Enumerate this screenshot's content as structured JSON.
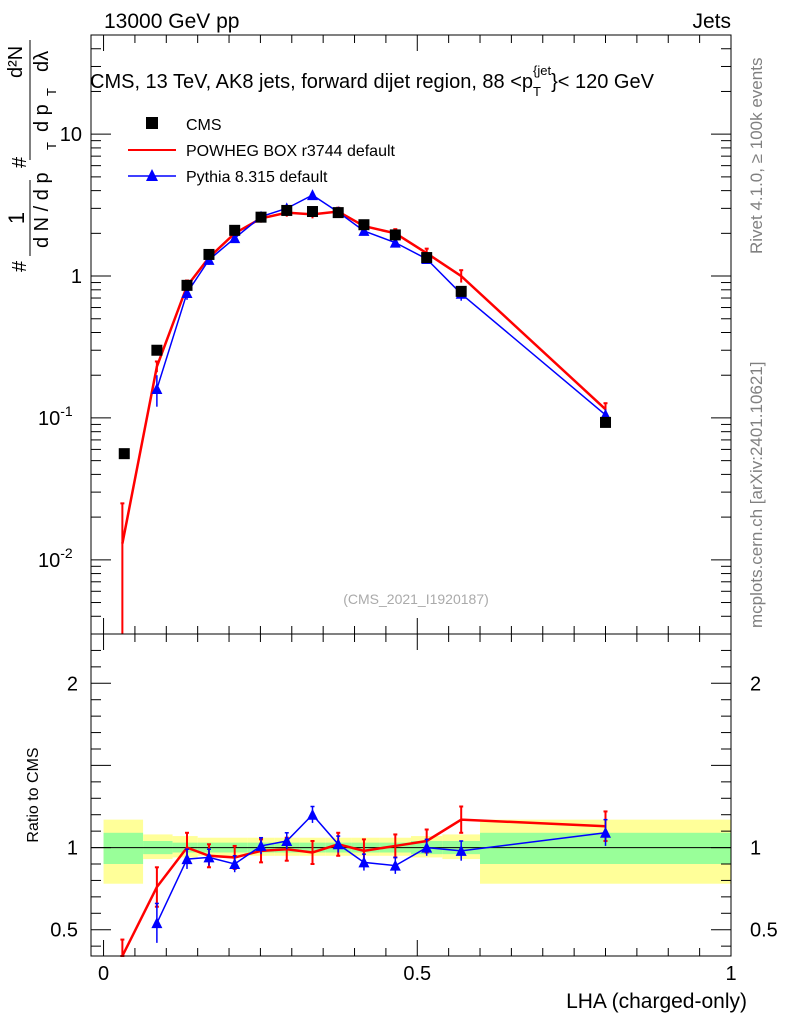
{
  "header": {
    "energy_label": "13000 GeV pp",
    "category_label": "Jets"
  },
  "side_labels": {
    "rivet": "Rivet 4.1.0, ≥ 100k events",
    "source": "mcplots.cern.ch [arXiv:2401.10621]"
  },
  "chart_data": [
    {
      "panel": "main",
      "type": "line",
      "title": "CMS, 13 TeV, AK8 jets, forward dijet region, 88 <p_T^{jet}< 120 GeV",
      "title_parts": {
        "prefix": "CMS, 13 TeV, AK8 jets, forward dijet region, 88 <p",
        "sub": "T",
        "sup": "{jet",
        "suffix": "}< 120 GeV"
      },
      "ylabel": "1/(dN/dp_T) d²N/(dp_T dλ)",
      "ylabel_parts": {
        "one": "1",
        "den": "d N / d p",
        "num": "d²N",
        "den2": "d p",
        "dl": "dλ",
        "T": "T",
        "hash": "#"
      },
      "yscale": "log",
      "ylim": [
        0.003,
        50
      ],
      "y_ticks": [
        {
          "value": 0.01,
          "label": "10",
          "exp": "-2"
        },
        {
          "value": 0.1,
          "label": "10",
          "exp": "-1"
        },
        {
          "value": 1,
          "label": "1",
          "exp": ""
        },
        {
          "value": 10,
          "label": "10",
          "exp": ""
        }
      ],
      "xlim": [
        -0.02,
        1.0
      ],
      "watermark": "(CMS_2021_I1920187)",
      "legend_position": "top-left",
      "series": [
        {
          "name": "CMS",
          "marker": "square",
          "color": "#000000",
          "x": [
            0.033,
            0.085,
            0.133,
            0.168,
            0.209,
            0.251,
            0.292,
            0.333,
            0.374,
            0.415,
            0.465,
            0.515,
            0.57,
            0.8
          ],
          "y": [
            0.056,
            0.3,
            0.86,
            1.42,
            2.1,
            2.6,
            2.9,
            2.85,
            2.8,
            2.3,
            1.95,
            1.35,
            0.78,
            0.093
          ],
          "err": [
            0.002,
            0.01,
            0.03,
            0.04,
            0.06,
            0.07,
            0.08,
            0.08,
            0.08,
            0.07,
            0.06,
            0.05,
            0.03,
            0.003
          ]
        },
        {
          "name": "POWHEG BOX r3744 default",
          "marker": "none",
          "color": "#ff0000",
          "x": [
            0.03,
            0.085,
            0.133,
            0.168,
            0.209,
            0.251,
            0.292,
            0.333,
            0.374,
            0.415,
            0.465,
            0.515,
            0.57,
            0.8
          ],
          "y": [
            0.013,
            0.23,
            0.85,
            1.35,
            2.0,
            2.55,
            2.8,
            2.72,
            2.85,
            2.25,
            2.0,
            1.45,
            1.0,
            0.115
          ],
          "err_lo": [
            0.012,
            0.02,
            0.08,
            0.1,
            0.14,
            0.17,
            0.18,
            0.17,
            0.18,
            0.15,
            0.14,
            0.11,
            0.1,
            0.012
          ],
          "err_hi": [
            0.012,
            0.02,
            0.08,
            0.1,
            0.14,
            0.17,
            0.18,
            0.17,
            0.18,
            0.15,
            0.14,
            0.11,
            0.1,
            0.012
          ]
        },
        {
          "name": "Pythia 8.315 default",
          "marker": "triangle",
          "color": "#0000ff",
          "x": [
            0.085,
            0.133,
            0.168,
            0.209,
            0.251,
            0.292,
            0.333,
            0.374,
            0.415,
            0.465,
            0.515,
            0.57,
            0.8
          ],
          "y": [
            0.16,
            0.76,
            1.3,
            1.85,
            2.62,
            3.0,
            3.72,
            2.82,
            2.08,
            1.72,
            1.32,
            0.75,
            0.105
          ],
          "err": [
            0.04,
            0.08,
            0.1,
            0.12,
            0.14,
            0.15,
            0.17,
            0.15,
            0.12,
            0.11,
            0.09,
            0.08,
            0.01
          ]
        }
      ]
    },
    {
      "panel": "ratio",
      "type": "line",
      "ylabel": "Ratio to CMS",
      "xlabel": "LHA (charged-only)",
      "ylim": [
        0.34,
        2.3
      ],
      "xlim": [
        -0.02,
        1.0
      ],
      "y_ticks": [
        0.5,
        1,
        2
      ],
      "y_tick_labels": [
        "0.5",
        "1",
        "2"
      ],
      "x_ticks": [
        0,
        0.5,
        1
      ],
      "x_tick_labels": [
        "0",
        "0.5",
        "1"
      ],
      "bin_edges": [
        0.0,
        0.063,
        0.11,
        0.15,
        0.188,
        0.23,
        0.272,
        0.312,
        0.354,
        0.395,
        0.44,
        0.49,
        0.54,
        0.6,
        1.0
      ],
      "band_yellow": [
        [
          0.78,
          1.17
        ],
        [
          0.93,
          1.08
        ],
        [
          0.94,
          1.07
        ],
        [
          0.95,
          1.06
        ],
        [
          0.95,
          1.06
        ],
        [
          0.95,
          1.06
        ],
        [
          0.95,
          1.06
        ],
        [
          0.95,
          1.06
        ],
        [
          0.95,
          1.06
        ],
        [
          0.95,
          1.06
        ],
        [
          0.95,
          1.06
        ],
        [
          0.94,
          1.07
        ],
        [
          0.93,
          1.08
        ],
        [
          0.78,
          1.17
        ]
      ],
      "band_green": [
        [
          0.9,
          1.09
        ],
        [
          0.96,
          1.04
        ],
        [
          0.97,
          1.03
        ],
        [
          0.97,
          1.03
        ],
        [
          0.97,
          1.03
        ],
        [
          0.97,
          1.03
        ],
        [
          0.97,
          1.03
        ],
        [
          0.97,
          1.03
        ],
        [
          0.97,
          1.03
        ],
        [
          0.97,
          1.03
        ],
        [
          0.97,
          1.03
        ],
        [
          0.96,
          1.04
        ],
        [
          0.96,
          1.04
        ],
        [
          0.9,
          1.09
        ]
      ],
      "series": [
        {
          "name": "POWHEG BOX r3744 default",
          "color": "#ff0000",
          "x": [
            0.03,
            0.085,
            0.133,
            0.168,
            0.209,
            0.251,
            0.292,
            0.333,
            0.374,
            0.415,
            0.465,
            0.515,
            0.57,
            0.8
          ],
          "y": [
            0.24,
            0.76,
            1.0,
            0.95,
            0.94,
            0.98,
            0.99,
            0.97,
            1.02,
            0.98,
            1.01,
            1.04,
            1.17,
            1.13
          ],
          "err": [
            0.2,
            0.12,
            0.09,
            0.07,
            0.07,
            0.07,
            0.07,
            0.07,
            0.07,
            0.07,
            0.07,
            0.07,
            0.08,
            0.09
          ]
        },
        {
          "name": "Pythia 8.315 default",
          "color": "#0000ff",
          "x": [
            0.085,
            0.133,
            0.168,
            0.209,
            0.251,
            0.292,
            0.333,
            0.374,
            0.415,
            0.465,
            0.515,
            0.57,
            0.8
          ],
          "y": [
            0.54,
            0.93,
            0.94,
            0.9,
            1.01,
            1.04,
            1.2,
            1.02,
            0.91,
            0.89,
            1.0,
            0.98,
            1.09
          ],
          "err": [
            0.12,
            0.06,
            0.05,
            0.05,
            0.05,
            0.05,
            0.05,
            0.05,
            0.05,
            0.05,
            0.05,
            0.06,
            0.08
          ]
        }
      ]
    }
  ]
}
